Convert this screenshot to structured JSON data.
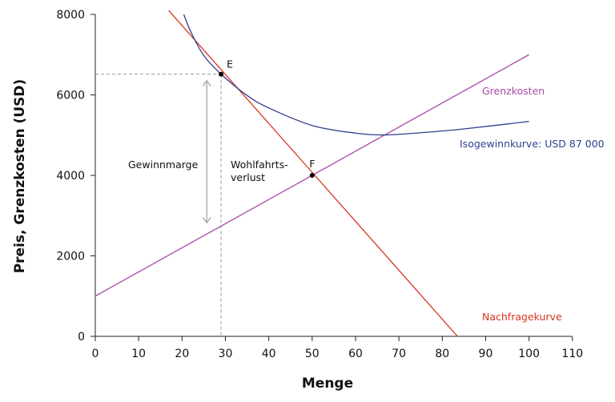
{
  "chart_data": {
    "type": "line",
    "xlabel": "Menge",
    "ylabel": "Preis, Grenzkosten (USD)",
    "xlim": [
      0,
      110
    ],
    "ylim": [
      0,
      8000
    ],
    "x_ticks": [
      "0",
      "10",
      "20",
      "30",
      "40",
      "50",
      "60",
      "70",
      "80",
      "90",
      "100",
      "110"
    ],
    "y_ticks": [
      "0",
      "2000",
      "4000",
      "6000",
      "8000"
    ],
    "series": [
      {
        "name": "Nachfragekurve",
        "color": "#d9341f",
        "x": [
          16.9,
          83.5
        ],
        "y": [
          8100,
          0
        ]
      },
      {
        "name": "Grenzkosten",
        "color": "#a64ca6",
        "x": [
          0,
          100
        ],
        "y": [
          1000,
          7000
        ]
      },
      {
        "name": "Isogewinnkurve: USD 87 000",
        "color": "#2f3f8f",
        "x": [
          20.4,
          22,
          25,
          29,
          35,
          40,
          50,
          60,
          66.7,
          75,
          85,
          100
        ],
        "y": [
          8000,
          7574,
          6980,
          6515,
          5986,
          5675,
          5240,
          5050,
          5004,
          5060,
          5155,
          5340
        ]
      }
    ],
    "points": [
      {
        "label": "E",
        "x": 29,
        "y": 6515
      },
      {
        "label": "F",
        "x": 50,
        "y": 4000
      }
    ],
    "annotations": {
      "margin": "Gewinnmarge",
      "deadweight_line1": "Wohlfahrts-",
      "deadweight_line2": "verlust"
    },
    "colors": {
      "dashed": "#999999",
      "arrow": "#aaaaaa",
      "axis": "#222222"
    }
  }
}
